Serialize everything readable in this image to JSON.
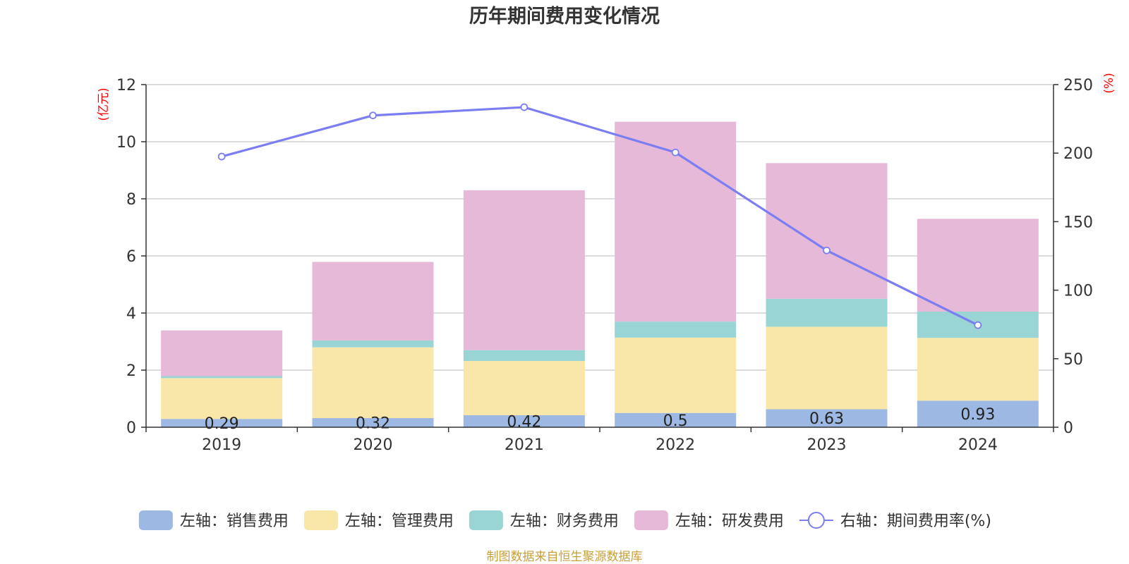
{
  "chart_data": {
    "type": "bar",
    "title": "历年期间费用变化情况",
    "left_unit": "(亿元)",
    "right_unit": "(%)",
    "categories": [
      "2019",
      "2020",
      "2021",
      "2022",
      "2023",
      "2024"
    ],
    "y_left": {
      "lim": [
        0,
        12
      ],
      "ticks": [
        0,
        2,
        4,
        6,
        8,
        10,
        12
      ]
    },
    "y_right": {
      "lim": [
        0,
        250
      ],
      "ticks": [
        0,
        50,
        100,
        150,
        200,
        250
      ]
    },
    "series": [
      {
        "name": "左轴：销售费用",
        "axis": "left",
        "kind": "bar",
        "color": "#9db8e2",
        "values": [
          0.29,
          0.32,
          0.42,
          0.5,
          0.63,
          0.93
        ],
        "labels": [
          "0.29",
          "0.32",
          "0.42",
          "0.5",
          "0.63",
          "0.93"
        ]
      },
      {
        "name": "左轴：管理费用",
        "axis": "left",
        "kind": "bar",
        "color": "#f8e7a8",
        "values": [
          1.43,
          2.48,
          1.9,
          2.64,
          2.89,
          2.2
        ]
      },
      {
        "name": "左轴：财务费用",
        "axis": "left",
        "kind": "bar",
        "color": "#98d5d4",
        "values": [
          0.07,
          0.24,
          0.38,
          0.56,
          0.98,
          0.92
        ]
      },
      {
        "name": "左轴：研发费用",
        "axis": "left",
        "kind": "bar",
        "color": "#e7b9d9",
        "values": [
          1.6,
          2.75,
          5.6,
          7.0,
          4.75,
          3.25
        ]
      },
      {
        "name": "右轴：期间费用率(%)",
        "axis": "right",
        "kind": "line",
        "color": "#7b7ef0",
        "values": [
          197.5,
          227.5,
          233.5,
          200.5,
          129.0,
          74.5
        ]
      }
    ],
    "grid": true,
    "legend_position": "bottom"
  },
  "source": "制图数据来自恒生聚源数据库"
}
